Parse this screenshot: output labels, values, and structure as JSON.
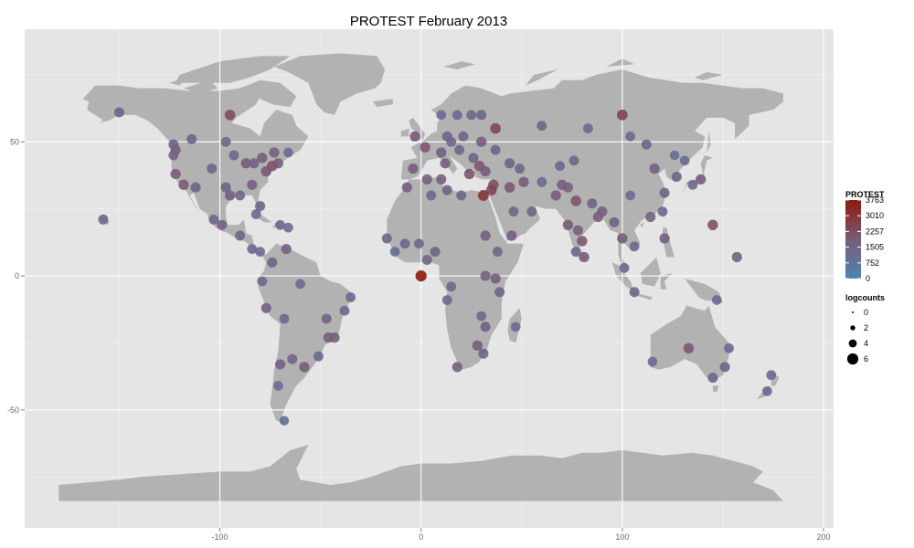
{
  "chart_data": {
    "type": "scatter",
    "title": "PROTEST February 2013",
    "xlabel": "",
    "ylabel": "",
    "xlim": [
      -197,
      205
    ],
    "ylim": [
      -94,
      92
    ],
    "x_ticks": [
      -100,
      0,
      100,
      200
    ],
    "y_ticks": [
      -50,
      0,
      50
    ],
    "x_tick_labels": [
      "-100",
      "0",
      "100",
      "200"
    ],
    "y_tick_labels": [
      "-50",
      "0",
      "50"
    ],
    "grid": true,
    "background": "#e5e5e5",
    "land_color": "#b2b2b2",
    "color_legend": {
      "title": "PROTEST",
      "ticks": [
        0,
        752,
        1505,
        2257,
        3010,
        3763
      ],
      "tick_labels": [
        "0",
        "752",
        "1505",
        "2257",
        "3010",
        "3763"
      ],
      "low_color": "#4f82b4",
      "mid_color": "#7a5b78",
      "high_color": "#8b1a10"
    },
    "size_legend": {
      "title": "logcounts",
      "values": [
        0,
        2,
        4,
        6
      ],
      "labels": [
        "0",
        "2",
        "4",
        "6"
      ]
    },
    "legend_position": "right",
    "points": [
      {
        "lon": 0,
        "lat": 0,
        "count": 3763
      },
      {
        "lon": 100,
        "lat": 60,
        "count": 2600
      },
      {
        "lon": -95,
        "lat": 60,
        "count": 2300
      },
      {
        "lon": 37,
        "lat": 55,
        "count": 2400
      },
      {
        "lon": 31,
        "lat": 30,
        "count": 3000
      },
      {
        "lon": 35,
        "lat": 32,
        "count": 2500
      },
      {
        "lon": 36,
        "lat": 34,
        "count": 2200
      },
      {
        "lon": 44,
        "lat": 33,
        "count": 2000
      },
      {
        "lon": 51,
        "lat": 35,
        "count": 1800
      },
      {
        "lon": 2,
        "lat": 48,
        "count": 2000
      },
      {
        "lon": -3,
        "lat": 52,
        "count": 1800
      },
      {
        "lon": 10,
        "lat": 46,
        "count": 1700
      },
      {
        "lon": 13,
        "lat": 52,
        "count": 1500
      },
      {
        "lon": 21,
        "lat": 52,
        "count": 1500
      },
      {
        "lon": 24,
        "lat": 38,
        "count": 2100
      },
      {
        "lon": 29,
        "lat": 41,
        "count": 2000
      },
      {
        "lon": 32,
        "lat": 39,
        "count": 1800
      },
      {
        "lon": 12,
        "lat": 42,
        "count": 1700
      },
      {
        "lon": -4,
        "lat": 40,
        "count": 1800
      },
      {
        "lon": 3,
        "lat": 36,
        "count": 1600
      },
      {
        "lon": 10,
        "lat": 36,
        "count": 1700
      },
      {
        "lon": 5,
        "lat": 30,
        "count": 1300
      },
      {
        "lon": 13,
        "lat": 32,
        "count": 1500
      },
      {
        "lon": 20,
        "lat": 30,
        "count": 1400
      },
      {
        "lon": 32,
        "lat": 15,
        "count": 1600
      },
      {
        "lon": 38,
        "lat": 9,
        "count": 1300
      },
      {
        "lon": 45,
        "lat": 15,
        "count": 1700
      },
      {
        "lon": 46,
        "lat": 24,
        "count": 1300
      },
      {
        "lon": 55,
        "lat": 24,
        "count": 1400
      },
      {
        "lon": 60,
        "lat": 35,
        "count": 1200
      },
      {
        "lon": 67,
        "lat": 30,
        "count": 1800
      },
      {
        "lon": 70,
        "lat": 34,
        "count": 1700
      },
      {
        "lon": 73,
        "lat": 33,
        "count": 1600
      },
      {
        "lon": 77,
        "lat": 28,
        "count": 2100
      },
      {
        "lon": 73,
        "lat": 19,
        "count": 1900
      },
      {
        "lon": 80,
        "lat": 13,
        "count": 2000
      },
      {
        "lon": 78,
        "lat": 17,
        "count": 1700
      },
      {
        "lon": 88,
        "lat": 22,
        "count": 1800
      },
      {
        "lon": 90,
        "lat": 24,
        "count": 1700
      },
      {
        "lon": 85,
        "lat": 27,
        "count": 1500
      },
      {
        "lon": 81,
        "lat": 7,
        "count": 1900
      },
      {
        "lon": 77,
        "lat": 9,
        "count": 1400
      },
      {
        "lon": 96,
        "lat": 20,
        "count": 1500
      },
      {
        "lon": 100,
        "lat": 14,
        "count": 1800
      },
      {
        "lon": 101,
        "lat": 3,
        "count": 1300
      },
      {
        "lon": 106,
        "lat": 11,
        "count": 1200
      },
      {
        "lon": 106,
        "lat": -6,
        "count": 1400
      },
      {
        "lon": 121,
        "lat": 14,
        "count": 1700
      },
      {
        "lon": 116,
        "lat": 40,
        "count": 1700
      },
      {
        "lon": 121,
        "lat": 31,
        "count": 1500
      },
      {
        "lon": 114,
        "lat": 22,
        "count": 1600
      },
      {
        "lon": 127,
        "lat": 37,
        "count": 1500
      },
      {
        "lon": 139,
        "lat": 36,
        "count": 1700
      },
      {
        "lon": 135,
        "lat": 34,
        "count": 1300
      },
      {
        "lon": 145,
        "lat": 19,
        "count": 2100
      },
      {
        "lon": 151,
        "lat": -34,
        "count": 1500
      },
      {
        "lon": 145,
        "lat": -38,
        "count": 1400
      },
      {
        "lon": 133,
        "lat": -27,
        "count": 2000
      },
      {
        "lon": 153,
        "lat": -27,
        "count": 1200
      },
      {
        "lon": 115,
        "lat": -32,
        "count": 1100
      },
      {
        "lon": 174,
        "lat": -37,
        "count": 1200
      },
      {
        "lon": 172,
        "lat": -43,
        "count": 1100
      },
      {
        "lon": 157,
        "lat": 7,
        "count": 1600
      },
      {
        "lon": 147,
        "lat": -9,
        "count": 1100
      },
      {
        "lon": 18,
        "lat": -34,
        "count": 1700
      },
      {
        "lon": 28,
        "lat": -26,
        "count": 1800
      },
      {
        "lon": 31,
        "lat": -29,
        "count": 1500
      },
      {
        "lon": 32,
        "lat": -19,
        "count": 1500
      },
      {
        "lon": 30,
        "lat": -15,
        "count": 1200
      },
      {
        "lon": 37,
        "lat": -1,
        "count": 1700
      },
      {
        "lon": 32,
        "lat": 0,
        "count": 1600
      },
      {
        "lon": 39,
        "lat": -6,
        "count": 1400
      },
      {
        "lon": 15,
        "lat": -4,
        "count": 1300
      },
      {
        "lon": 13,
        "lat": -9,
        "count": 1200
      },
      {
        "lon": 7,
        "lat": 9,
        "count": 1500
      },
      {
        "lon": 3,
        "lat": 6,
        "count": 1400
      },
      {
        "lon": -1,
        "lat": 12,
        "count": 1200
      },
      {
        "lon": -8,
        "lat": 12,
        "count": 1300
      },
      {
        "lon": -17,
        "lat": 14,
        "count": 1400
      },
      {
        "lon": -13,
        "lat": 9,
        "count": 1100
      },
      {
        "lon": -7,
        "lat": 33,
        "count": 1700
      },
      {
        "lon": 47,
        "lat": -19,
        "count": 1100
      },
      {
        "lon": -74,
        "lat": 41,
        "count": 2100
      },
      {
        "lon": -77,
        "lat": 39,
        "count": 2000
      },
      {
        "lon": -87,
        "lat": 42,
        "count": 1800
      },
      {
        "lon": -84,
        "lat": 34,
        "count": 1600
      },
      {
        "lon": -80,
        "lat": 26,
        "count": 1500
      },
      {
        "lon": -95,
        "lat": 30,
        "count": 1700
      },
      {
        "lon": -97,
        "lat": 33,
        "count": 1500
      },
      {
        "lon": -104,
        "lat": 40,
        "count": 1400
      },
      {
        "lon": -112,
        "lat": 33,
        "count": 1500
      },
      {
        "lon": -118,
        "lat": 34,
        "count": 1900
      },
      {
        "lon": -122,
        "lat": 38,
        "count": 1800
      },
      {
        "lon": -122,
        "lat": 47,
        "count": 1700
      },
      {
        "lon": -123,
        "lat": 45,
        "count": 1400
      },
      {
        "lon": -93,
        "lat": 45,
        "count": 1300
      },
      {
        "lon": -90,
        "lat": 30,
        "count": 1300
      },
      {
        "lon": -83,
        "lat": 42,
        "count": 1500
      },
      {
        "lon": -79,
        "lat": 44,
        "count": 1800
      },
      {
        "lon": -73,
        "lat": 46,
        "count": 1600
      },
      {
        "lon": -71,
        "lat": 42,
        "count": 1700
      },
      {
        "lon": -114,
        "lat": 51,
        "count": 1400
      },
      {
        "lon": -123,
        "lat": 49,
        "count": 1500
      },
      {
        "lon": -97,
        "lat": 50,
        "count": 1300
      },
      {
        "lon": -66,
        "lat": 46,
        "count": 1100
      },
      {
        "lon": -150,
        "lat": 61,
        "count": 1500
      },
      {
        "lon": -158,
        "lat": 21,
        "count": 1400
      },
      {
        "lon": -99,
        "lat": 19,
        "count": 1700
      },
      {
        "lon": -103,
        "lat": 21,
        "count": 1300
      },
      {
        "lon": -90,
        "lat": 15,
        "count": 1300
      },
      {
        "lon": -84,
        "lat": 10,
        "count": 1200
      },
      {
        "lon": -80,
        "lat": 9,
        "count": 1100
      },
      {
        "lon": -82,
        "lat": 23,
        "count": 1200
      },
      {
        "lon": -70,
        "lat": 19,
        "count": 1200
      },
      {
        "lon": -66,
        "lat": 18,
        "count": 1100
      },
      {
        "lon": -74,
        "lat": 5,
        "count": 1500
      },
      {
        "lon": -67,
        "lat": 10,
        "count": 1600
      },
      {
        "lon": -79,
        "lat": -2,
        "count": 1300
      },
      {
        "lon": -77,
        "lat": -12,
        "count": 1500
      },
      {
        "lon": -68,
        "lat": -16,
        "count": 1200
      },
      {
        "lon": -47,
        "lat": -16,
        "count": 1400
      },
      {
        "lon": -43,
        "lat": -23,
        "count": 1700
      },
      {
        "lon": -46,
        "lat": -23,
        "count": 1800
      },
      {
        "lon": -51,
        "lat": -30,
        "count": 1300
      },
      {
        "lon": -38,
        "lat": -13,
        "count": 1300
      },
      {
        "lon": -35,
        "lat": -8,
        "count": 1200
      },
      {
        "lon": -60,
        "lat": -3,
        "count": 1100
      },
      {
        "lon": -58,
        "lat": -34,
        "count": 1800
      },
      {
        "lon": -64,
        "lat": -31,
        "count": 1400
      },
      {
        "lon": -70,
        "lat": -33,
        "count": 1600
      },
      {
        "lon": -71,
        "lat": -41,
        "count": 1100
      },
      {
        "lon": -68,
        "lat": -54,
        "count": 900
      },
      {
        "lon": 37,
        "lat": 47,
        "count": 1400
      },
      {
        "lon": 44,
        "lat": 42,
        "count": 1500
      },
      {
        "lon": 49,
        "lat": 40,
        "count": 1300
      },
      {
        "lon": 30,
        "lat": 50,
        "count": 1800
      },
      {
        "lon": 26,
        "lat": 44,
        "count": 1500
      },
      {
        "lon": 19,
        "lat": 47,
        "count": 1400
      },
      {
        "lon": 15,
        "lat": 50,
        "count": 1300
      },
      {
        "lon": 18,
        "lat": 60,
        "count": 1200
      },
      {
        "lon": 10,
        "lat": 60,
        "count": 1100
      },
      {
        "lon": 25,
        "lat": 60,
        "count": 1300
      },
      {
        "lon": 30,
        "lat": 60,
        "count": 1500
      },
      {
        "lon": 60,
        "lat": 56,
        "count": 1300
      },
      {
        "lon": 83,
        "lat": 55,
        "count": 1200
      },
      {
        "lon": 76,
        "lat": 43,
        "count": 1300
      },
      {
        "lon": 69,
        "lat": 41,
        "count": 1200
      },
      {
        "lon": 104,
        "lat": 52,
        "count": 1100
      },
      {
        "lon": 131,
        "lat": 43,
        "count": 1100
      },
      {
        "lon": 112,
        "lat": 49,
        "count": 1400
      },
      {
        "lon": 126,
        "lat": 45,
        "count": 1000
      },
      {
        "lon": 104,
        "lat": 30,
        "count": 1100
      },
      {
        "lon": 120,
        "lat": 24,
        "count": 1200
      }
    ]
  }
}
